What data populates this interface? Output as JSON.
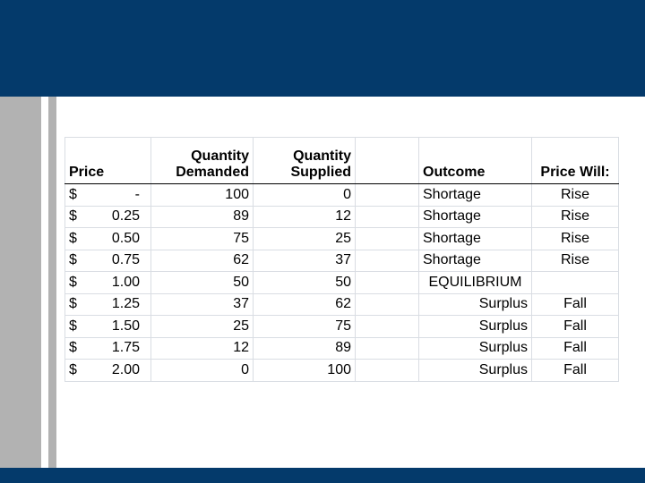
{
  "table": {
    "headers": {
      "price": "Price",
      "demanded": [
        "Quantity",
        "Demanded"
      ],
      "supplied": [
        "Quantity",
        "Supplied"
      ],
      "outcome": "Outcome",
      "price_will": "Price Will:"
    },
    "rows": [
      {
        "currency": "$",
        "price": "-",
        "demanded": 100,
        "supplied": 0,
        "outcome": "Shortage",
        "price_will": "Rise"
      },
      {
        "currency": "$",
        "price": "0.25",
        "demanded": 89,
        "supplied": 12,
        "outcome": "Shortage",
        "price_will": "Rise"
      },
      {
        "currency": "$",
        "price": "0.50",
        "demanded": 75,
        "supplied": 25,
        "outcome": "Shortage",
        "price_will": "Rise"
      },
      {
        "currency": "$",
        "price": "0.75",
        "demanded": 62,
        "supplied": 37,
        "outcome": "Shortage",
        "price_will": "Rise"
      },
      {
        "currency": "$",
        "price": "1.00",
        "demanded": 50,
        "supplied": 50,
        "outcome": "EQUILIBRIUM"
      },
      {
        "currency": "$",
        "price": "1.25",
        "demanded": 37,
        "supplied": 62,
        "outcome": "Surplus",
        "price_will": "Fall"
      },
      {
        "currency": "$",
        "price": "1.50",
        "demanded": 25,
        "supplied": 75,
        "outcome": "Surplus",
        "price_will": "Fall"
      },
      {
        "currency": "$",
        "price": "1.75",
        "demanded": 12,
        "supplied": 89,
        "outcome": "Surplus",
        "price_will": "Fall"
      },
      {
        "currency": "$",
        "price": "2.00",
        "demanded": 0,
        "supplied": 100,
        "outcome": "Surplus",
        "price_will": "Fall"
      }
    ]
  }
}
